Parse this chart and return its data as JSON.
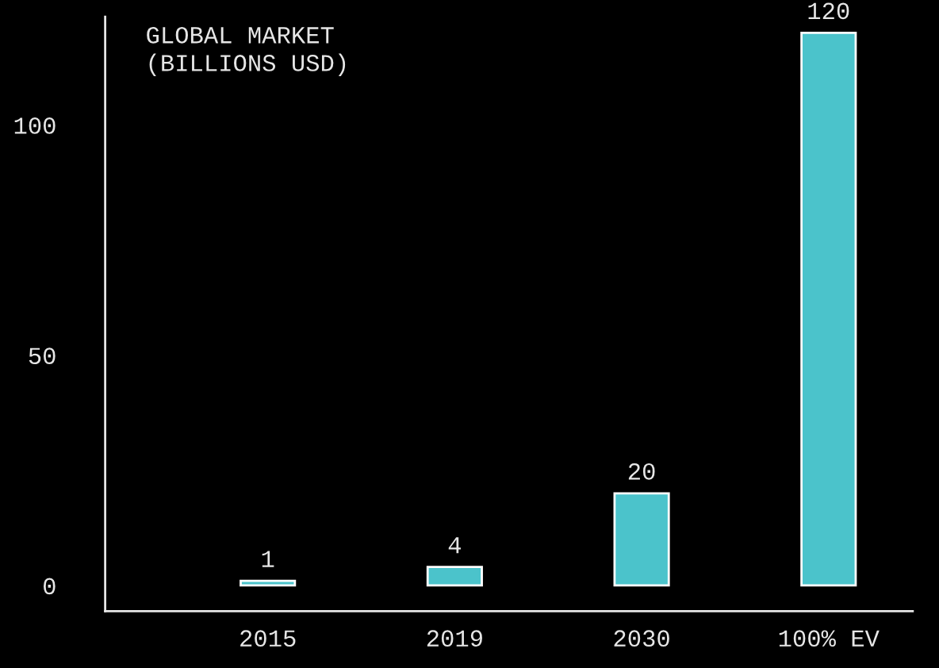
{
  "chart_data": {
    "type": "bar",
    "title": "GLOBAL MARKET\n(BILLIONS USD)",
    "categories": [
      "2015",
      "2019",
      "2030",
      "100% EV"
    ],
    "values": [
      1,
      4,
      20,
      120
    ],
    "color": "#4bc3cb",
    "ylim": [
      -5.6,
      123.5
    ],
    "yticks": [
      0,
      50,
      100
    ],
    "grid": false,
    "data_labels": true
  }
}
